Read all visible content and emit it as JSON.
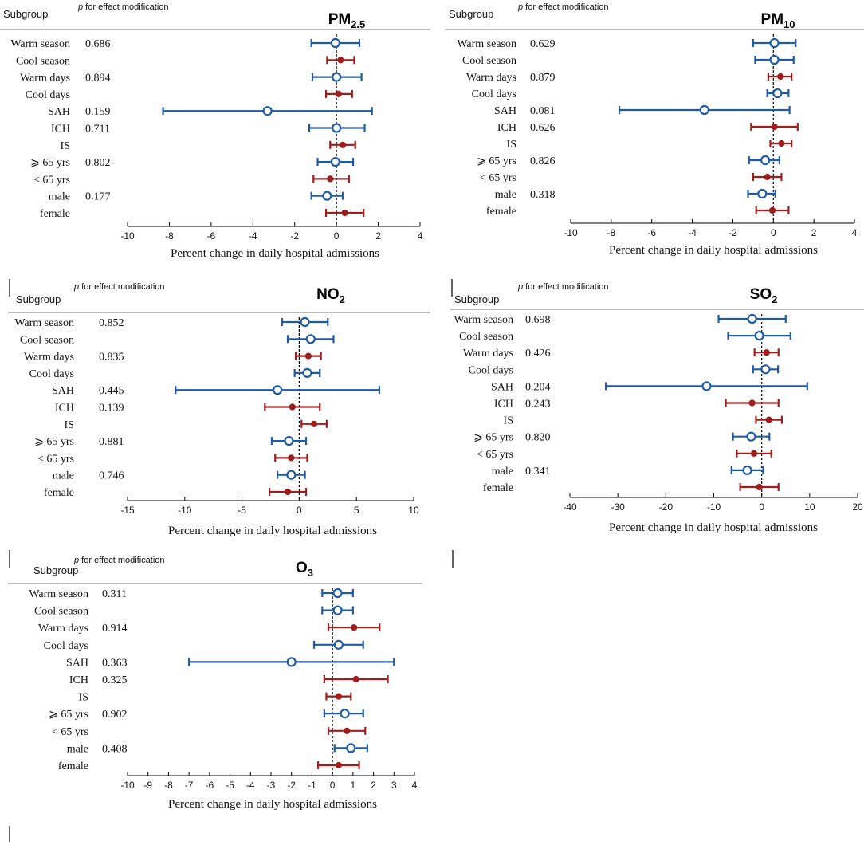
{
  "legend_colors": {
    "open": "#1f5aa6",
    "filled": "#a01d1d"
  },
  "chart_data": [
    {
      "type": "forest",
      "title": "PM",
      "title_sub": "2.5",
      "header_subgroup": "Subgroup",
      "header_p_italic": "p",
      "header_p_rest": " for effect modification",
      "xlabel": "Percent change in daily hospital admissions",
      "xlim": [
        -10,
        4
      ],
      "ticks": [
        -10,
        -8,
        -6,
        -4,
        -2,
        0,
        2,
        4
      ],
      "rows": [
        {
          "label": "Warm season",
          "p": "0.686",
          "est": -0.05,
          "lo": -1.2,
          "hi": 1.1,
          "marker": "open"
        },
        {
          "label": "Cool season",
          "p": "",
          "est": 0.2,
          "lo": -0.45,
          "hi": 0.85,
          "marker": "filled"
        },
        {
          "label": "Warm days",
          "p": "0.894",
          "est": 0.0,
          "lo": -1.15,
          "hi": 1.2,
          "marker": "open"
        },
        {
          "label": "Cool days",
          "p": "",
          "est": 0.1,
          "lo": -0.5,
          "hi": 0.75,
          "marker": "filled"
        },
        {
          "label": "SAH",
          "p": "0.159",
          "est": -3.3,
          "lo": -8.3,
          "hi": 1.7,
          "marker": "open"
        },
        {
          "label": "ICH",
          "p": "0.711",
          "est": 0.0,
          "lo": -1.3,
          "hi": 1.35,
          "marker": "open"
        },
        {
          "label": "IS",
          "p": "",
          "est": 0.3,
          "lo": -0.3,
          "hi": 0.9,
          "marker": "filled"
        },
        {
          "label": "⩾ 65 yrs",
          "p": "0.802",
          "est": -0.05,
          "lo": -0.9,
          "hi": 0.8,
          "marker": "open"
        },
        {
          "label": "< 65 yrs",
          "p": "",
          "est": -0.3,
          "lo": -1.1,
          "hi": 0.6,
          "marker": "filled"
        },
        {
          "label": "male",
          "p": "0.177",
          "est": -0.45,
          "lo": -1.2,
          "hi": 0.3,
          "marker": "open"
        },
        {
          "label": "female",
          "p": "",
          "est": 0.4,
          "lo": -0.5,
          "hi": 1.3,
          "marker": "filled"
        }
      ]
    },
    {
      "type": "forest",
      "title": "PM",
      "title_sub": "10",
      "header_subgroup": "Subgroup",
      "header_p_italic": "p",
      "header_p_rest": " for effect modification",
      "xlabel": "Percent change in daily hospital admissions",
      "xlim": [
        -10,
        4
      ],
      "ticks": [
        -10,
        -8,
        -6,
        -4,
        -2,
        0,
        2,
        4
      ],
      "rows": [
        {
          "label": "Warm season",
          "p": "0.629",
          "est": 0.05,
          "lo": -1.0,
          "hi": 1.1,
          "marker": "open"
        },
        {
          "label": "Cool season",
          "p": "",
          "est": 0.05,
          "lo": -0.9,
          "hi": 1.0,
          "marker": "open"
        },
        {
          "label": "Warm days",
          "p": "0.879",
          "est": 0.35,
          "lo": -0.25,
          "hi": 0.9,
          "marker": "filled"
        },
        {
          "label": "Cool days",
          "p": "",
          "est": 0.2,
          "lo": -0.3,
          "hi": 0.75,
          "marker": "open"
        },
        {
          "label": "SAH",
          "p": "0.081",
          "est": -3.4,
          "lo": -7.6,
          "hi": 0.8,
          "marker": "open"
        },
        {
          "label": "ICH",
          "p": "0.626",
          "est": 0.05,
          "lo": -1.1,
          "hi": 1.2,
          "marker": "filled"
        },
        {
          "label": "IS",
          "p": "",
          "est": 0.4,
          "lo": -0.15,
          "hi": 0.9,
          "marker": "filled"
        },
        {
          "label": "⩾ 65 yrs",
          "p": "0.826",
          "est": -0.4,
          "lo": -1.2,
          "hi": 0.3,
          "marker": "open"
        },
        {
          "label": "< 65 yrs",
          "p": "",
          "est": -0.3,
          "lo": -1.0,
          "hi": 0.4,
          "marker": "filled"
        },
        {
          "label": "male",
          "p": "0.318",
          "est": -0.55,
          "lo": -1.25,
          "hi": 0.1,
          "marker": "open"
        },
        {
          "label": "female",
          "p": "",
          "est": -0.05,
          "lo": -0.85,
          "hi": 0.75,
          "marker": "filled"
        }
      ]
    },
    {
      "type": "forest",
      "title": "NO",
      "title_sub": "2",
      "header_subgroup": "Subgroup",
      "header_p_italic": "p",
      "header_p_rest": " for effect modification",
      "xlabel": "Percent change in daily hospital admissions",
      "xlim": [
        -15,
        10
      ],
      "ticks": [
        -15,
        -10,
        -5,
        0,
        5,
        10
      ],
      "rows": [
        {
          "label": "Warm season",
          "p": "0.852",
          "est": 0.5,
          "lo": -1.5,
          "hi": 2.5,
          "marker": "open"
        },
        {
          "label": "Cool season",
          "p": "",
          "est": 1.0,
          "lo": -1.0,
          "hi": 3.0,
          "marker": "open"
        },
        {
          "label": "Warm days",
          "p": "0.835",
          "est": 0.8,
          "lo": -0.3,
          "hi": 1.9,
          "marker": "filled"
        },
        {
          "label": "Cool days",
          "p": "",
          "est": 0.7,
          "lo": -0.4,
          "hi": 1.8,
          "marker": "open"
        },
        {
          "label": "SAH",
          "p": "0.445",
          "est": -1.9,
          "lo": -10.8,
          "hi": 7.0,
          "marker": "open"
        },
        {
          "label": "ICH",
          "p": "0.139",
          "est": -0.6,
          "lo": -3.0,
          "hi": 1.8,
          "marker": "filled"
        },
        {
          "label": "IS",
          "p": "",
          "est": 1.3,
          "lo": 0.2,
          "hi": 2.4,
          "marker": "filled"
        },
        {
          "label": "⩾ 65 yrs",
          "p": "0.881",
          "est": -0.9,
          "lo": -2.4,
          "hi": 0.6,
          "marker": "open"
        },
        {
          "label": "< 65 yrs",
          "p": "",
          "est": -0.7,
          "lo": -2.1,
          "hi": 0.7,
          "marker": "filled"
        },
        {
          "label": "male",
          "p": "0.746",
          "est": -0.7,
          "lo": -1.9,
          "hi": 0.5,
          "marker": "open"
        },
        {
          "label": "female",
          "p": "",
          "est": -1.0,
          "lo": -2.6,
          "hi": 0.6,
          "marker": "filled"
        }
      ]
    },
    {
      "type": "forest",
      "title": "SO",
      "title_sub": "2",
      "header_subgroup": "Subgroup",
      "header_p_italic": "p",
      "header_p_rest": " for effect modification",
      "xlabel": "Percent change in daily hospital admissions",
      "xlim": [
        -40,
        20
      ],
      "ticks": [
        -40,
        -30,
        -20,
        -10,
        0,
        10,
        20
      ],
      "rows": [
        {
          "label": "Warm season",
          "p": "0.698",
          "est": -2.0,
          "lo": -9.0,
          "hi": 5.0,
          "marker": "open"
        },
        {
          "label": "Cool season",
          "p": "",
          "est": -0.5,
          "lo": -7.0,
          "hi": 6.0,
          "marker": "open"
        },
        {
          "label": "Warm days",
          "p": "0.426",
          "est": 1.0,
          "lo": -1.5,
          "hi": 3.5,
          "marker": "filled"
        },
        {
          "label": "Cool days",
          "p": "",
          "est": 0.8,
          "lo": -1.8,
          "hi": 3.4,
          "marker": "open"
        },
        {
          "label": "SAH",
          "p": "0.204",
          "est": -11.5,
          "lo": -32.5,
          "hi": 9.5,
          "marker": "open"
        },
        {
          "label": "ICH",
          "p": "0.243",
          "est": -2.0,
          "lo": -7.5,
          "hi": 3.5,
          "marker": "filled"
        },
        {
          "label": "IS",
          "p": "",
          "est": 1.5,
          "lo": -1.2,
          "hi": 4.2,
          "marker": "filled"
        },
        {
          "label": "⩾ 65 yrs",
          "p": "0.820",
          "est": -2.2,
          "lo": -6.0,
          "hi": 1.6,
          "marker": "open"
        },
        {
          "label": "< 65 yrs",
          "p": "",
          "est": -1.6,
          "lo": -5.2,
          "hi": 2.0,
          "marker": "filled"
        },
        {
          "label": "male",
          "p": "0.341",
          "est": -3.0,
          "lo": -6.3,
          "hi": 0.3,
          "marker": "open"
        },
        {
          "label": "female",
          "p": "",
          "est": -0.5,
          "lo": -4.5,
          "hi": 3.5,
          "marker": "filled"
        }
      ]
    },
    {
      "type": "forest",
      "title": "O",
      "title_sub": "3",
      "header_subgroup": "Subgroup",
      "header_p_italic": "p",
      "header_p_rest": " for effect modification",
      "xlabel": "Percent change in daily hospital admissions",
      "xlim": [
        -10,
        4
      ],
      "ticks": [
        -10,
        -9,
        -8,
        -7,
        -6,
        -5,
        -4,
        -3,
        -2,
        -1,
        0,
        1,
        2,
        3,
        4
      ],
      "rows": [
        {
          "label": "Warm season",
          "p": "0.311",
          "est": 0.25,
          "lo": -0.5,
          "hi": 1.0,
          "marker": "open"
        },
        {
          "label": "Cool season",
          "p": "",
          "est": 0.25,
          "lo": -0.5,
          "hi": 1.0,
          "marker": "open"
        },
        {
          "label": "Warm days",
          "p": "0.914",
          "est": 1.05,
          "lo": -0.2,
          "hi": 2.3,
          "marker": "filled"
        },
        {
          "label": "Cool days",
          "p": "",
          "est": 0.3,
          "lo": -0.9,
          "hi": 1.5,
          "marker": "open"
        },
        {
          "label": "SAH",
          "p": "0.363",
          "est": -2.0,
          "lo": -7.0,
          "hi": 3.0,
          "marker": "open"
        },
        {
          "label": "ICH",
          "p": "0.325",
          "est": 1.15,
          "lo": -0.4,
          "hi": 2.7,
          "marker": "filled"
        },
        {
          "label": "IS",
          "p": "",
          "est": 0.3,
          "lo": -0.3,
          "hi": 0.9,
          "marker": "filled"
        },
        {
          "label": "⩾ 65 yrs",
          "p": "0.902",
          "est": 0.6,
          "lo": -0.4,
          "hi": 1.5,
          "marker": "open"
        },
        {
          "label": "< 65 yrs",
          "p": "",
          "est": 0.7,
          "lo": -0.2,
          "hi": 1.6,
          "marker": "filled"
        },
        {
          "label": "male",
          "p": "0.408",
          "est": 0.9,
          "lo": 0.1,
          "hi": 1.7,
          "marker": "open"
        },
        {
          "label": "female",
          "p": "",
          "est": 0.3,
          "lo": -0.7,
          "hi": 1.3,
          "marker": "filled"
        }
      ]
    }
  ]
}
